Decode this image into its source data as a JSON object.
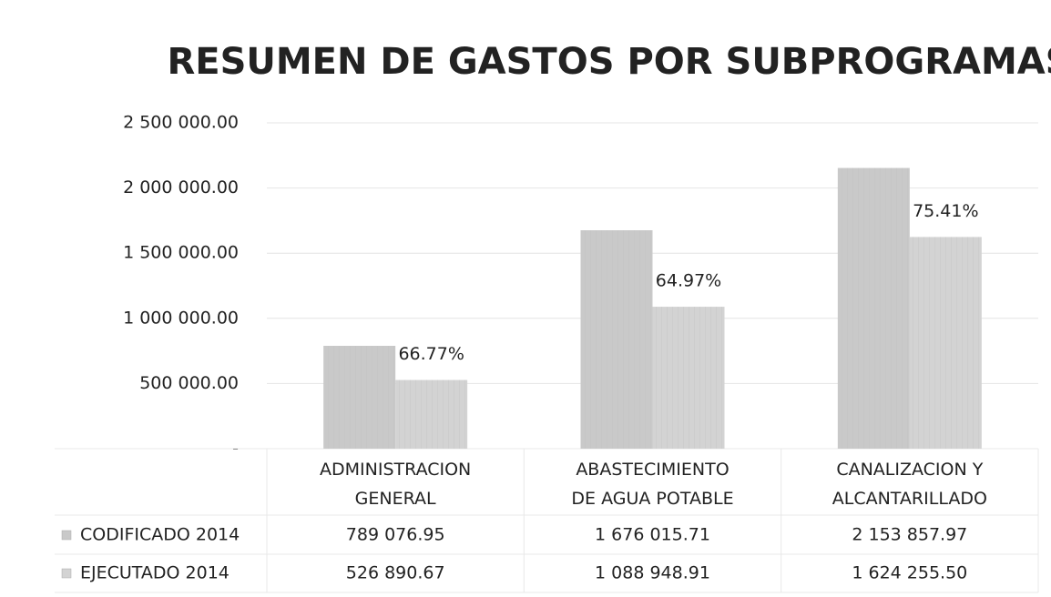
{
  "chart_data": {
    "type": "bar",
    "title": "RESUMEN DE GASTOS POR SUBPROGRAMAS",
    "categories": [
      "ADMINISTRACION GENERAL",
      "ABASTECIMIENTO DE AGUA POTABLE",
      "CANALIZACION Y ALCANTARILLADO"
    ],
    "series": [
      {
        "name": "CODIFICADO 2014",
        "color": "#c9c9c9",
        "values": [
          789076.95,
          1676015.71,
          2153857.97
        ],
        "value_labels": [
          "789 076.95",
          "1 676 015.71",
          "2 153 857.97"
        ]
      },
      {
        "name": "EJECUTADO 2014",
        "color": "#d3d3d3",
        "values": [
          526890.67,
          1088948.91,
          1624255.5
        ],
        "value_labels": [
          "526 890.67",
          "1 088 948.91",
          "1 624 255.50"
        ]
      }
    ],
    "annotations": [
      "66.77%",
      "64.97%",
      "75.41%"
    ],
    "ylim": [
      0,
      2500000
    ],
    "yticks": [
      {
        "value": 0,
        "label": "-"
      },
      {
        "value": 500000,
        "label": "500 000.00"
      },
      {
        "value": 1000000,
        "label": "1 000 000.00"
      },
      {
        "value": 1500000,
        "label": "1 500 000.00"
      },
      {
        "value": 2000000,
        "label": "2 000 000.00"
      },
      {
        "value": 2500000,
        "label": "2 500 000.00"
      }
    ],
    "grid": true
  }
}
